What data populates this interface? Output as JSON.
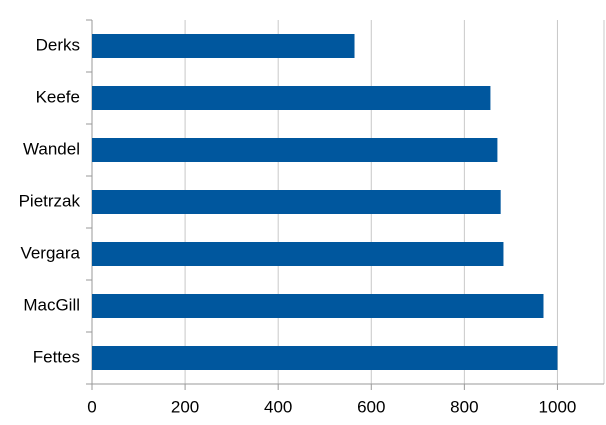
{
  "chart_data": {
    "type": "hbar",
    "categories": [
      "Derks",
      "Keefe",
      "Wandel",
      "Pietrzak",
      "Vergara",
      "MacGill",
      "Fettes"
    ],
    "values": [
      564,
      856,
      871,
      878,
      884,
      970,
      1000
    ],
    "color": "#00579e",
    "xlim": [
      0,
      1100
    ],
    "xticks": [
      0,
      200,
      400,
      600,
      800,
      1000
    ],
    "grid": true
  }
}
